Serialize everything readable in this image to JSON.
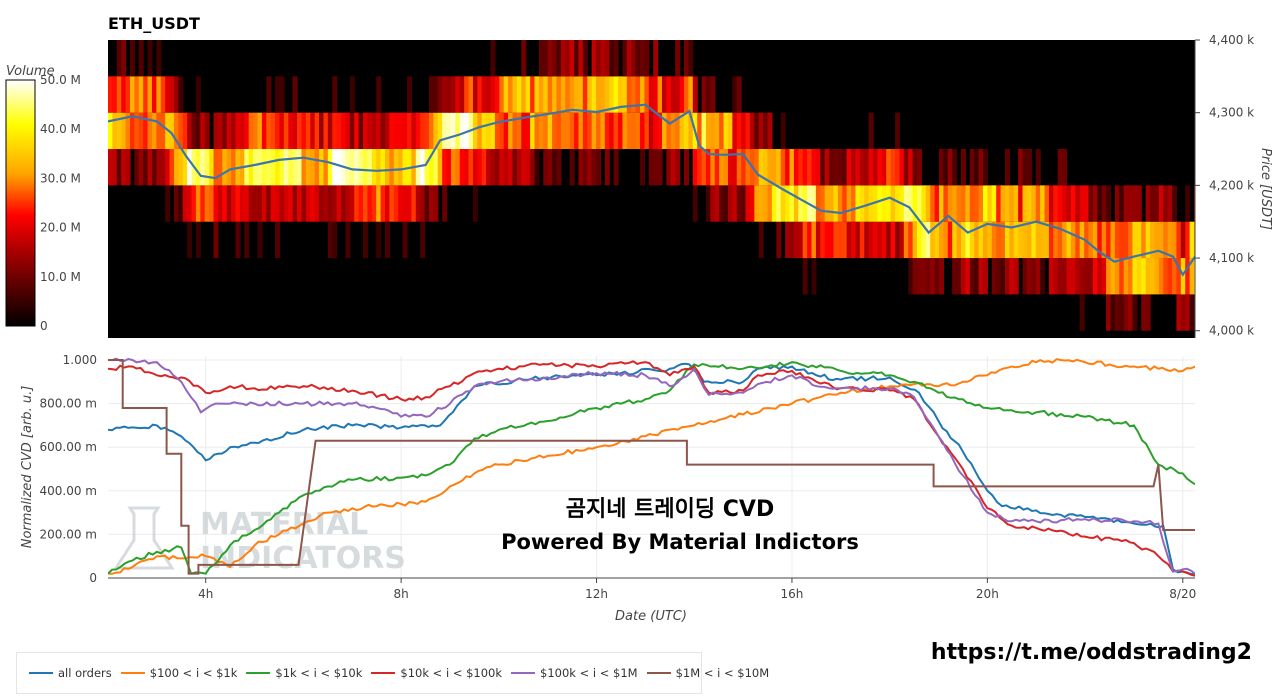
{
  "title": "ETH_USDT",
  "link_text": "https://t.me/oddstrading2",
  "overlay_line1": "곰지네 트레이딩 CVD",
  "overlay_line2": "Powered By Material Indictors",
  "watermark_line1": "MATERIAL",
  "watermark_line2": "INDICATORS",
  "chart_data": [
    {
      "type": "heatmap",
      "title": "ETH_USDT",
      "colorbar_title": "Volume",
      "colorbar_ticks": [
        "50.0 M",
        "40.0 M",
        "30.0 M",
        "20.0 M",
        "10.0 M",
        "0"
      ],
      "colorscale": [
        "#000000",
        "#8b0000",
        "#ff0000",
        "#ffa500",
        "#ffff00",
        "#ffffff"
      ],
      "zlim": [
        0,
        50
      ],
      "ylabel": "Price [USDT]",
      "ylim": [
        3990,
        4400
      ],
      "y_ticks": [
        "4,400 k",
        "4,300 k",
        "4,200 k",
        "4,100 k",
        "4,000 k"
      ],
      "y_tick_values": [
        4400,
        4300,
        4200,
        4100,
        4000
      ],
      "xlim": [
        2,
        24.25
      ],
      "price_bands": [
        4000,
        4050,
        4100,
        4150,
        4200,
        4250,
        4300,
        4350
      ],
      "price_series": {
        "color": "#3b75af",
        "x": [
          2,
          2.5,
          3,
          3.3,
          3.6,
          3.9,
          4.2,
          4.5,
          5.0,
          5.5,
          6.0,
          6.5,
          7.0,
          7.5,
          8.0,
          8.5,
          8.8,
          9.2,
          9.6,
          10.0,
          10.5,
          11.0,
          11.5,
          12.0,
          12.5,
          13.0,
          13.5,
          13.9,
          14.1,
          14.3,
          14.6,
          15.0,
          15.3,
          15.8,
          16.2,
          16.6,
          17.0,
          17.5,
          18.0,
          18.4,
          18.8,
          19.2,
          19.6,
          20.0,
          20.5,
          21.0,
          21.5,
          22.0,
          22.3,
          22.6,
          23.0,
          23.5,
          23.8,
          24.0,
          24.25
        ],
        "y": [
          4288,
          4295,
          4288,
          4272,
          4240,
          4213,
          4210,
          4222,
          4228,
          4235,
          4238,
          4232,
          4222,
          4220,
          4222,
          4228,
          4262,
          4270,
          4280,
          4287,
          4293,
          4298,
          4304,
          4301,
          4308,
          4311,
          4285,
          4302,
          4255,
          4243,
          4242,
          4243,
          4215,
          4195,
          4180,
          4165,
          4162,
          4172,
          4183,
          4170,
          4135,
          4158,
          4135,
          4147,
          4142,
          4150,
          4140,
          4125,
          4108,
          4095,
          4102,
          4110,
          4102,
          4077,
          4102
        ]
      }
    },
    {
      "type": "line",
      "xlabel": "Date (UTC)",
      "ylabel": "Normalized CVD [arb. u.]",
      "xlim": [
        2,
        24.25
      ],
      "ylim": [
        0,
        1
      ],
      "x_ticks": [
        "4h",
        "8h",
        "12h",
        "16h",
        "20h",
        "8/20"
      ],
      "x_tick_values": [
        4,
        8,
        12,
        16,
        20,
        24
      ],
      "y_ticks": [
        "1.000",
        "800.00 m",
        "600.00 m",
        "400.00 m",
        "200.00 m",
        "0"
      ],
      "y_tick_values": [
        1,
        0.8,
        0.6,
        0.4,
        0.2,
        0
      ],
      "series": [
        {
          "name": "all orders",
          "color": "#1f77b4",
          "x": [
            2,
            3,
            3.5,
            4.0,
            4.5,
            5.0,
            6.0,
            7.0,
            8.0,
            8.8,
            9.5,
            10.5,
            11.5,
            12.5,
            13.5,
            13.9,
            14.2,
            15.0,
            15.3,
            16.0,
            16.5,
            17.0,
            18.0,
            18.6,
            19.0,
            19.5,
            20.0,
            20.3,
            21.0,
            21.5,
            22.0,
            22.5,
            23.0,
            23.6,
            23.8,
            24.0,
            24.25
          ],
          "y": [
            0.68,
            0.7,
            0.65,
            0.54,
            0.6,
            0.62,
            0.68,
            0.7,
            0.69,
            0.7,
            0.88,
            0.91,
            0.93,
            0.94,
            0.96,
            0.98,
            0.9,
            0.9,
            0.96,
            0.97,
            0.93,
            0.91,
            0.92,
            0.85,
            0.72,
            0.58,
            0.4,
            0.33,
            0.31,
            0.29,
            0.28,
            0.27,
            0.25,
            0.24,
            0.04,
            0.03,
            0.02
          ]
        },
        {
          "name": "$100 < i < $1k",
          "color": "#ff7f0e",
          "x": [
            2,
            2.5,
            3.0,
            3.5,
            4.0,
            4.5,
            5.0,
            5.5,
            6.0,
            6.5,
            7.0,
            7.5,
            8.0,
            8.5,
            9.0,
            9.5,
            10.0,
            11.0,
            12.0,
            13.0,
            14.0,
            15.0,
            16.0,
            17.0,
            18.0,
            18.5,
            19.0,
            19.5,
            20.0,
            20.5,
            21.0,
            21.5,
            22.0,
            22.5,
            23.0,
            23.5,
            24.0,
            24.25
          ],
          "y": [
            0.02,
            0.05,
            0.1,
            0.09,
            0.1,
            0.05,
            0.15,
            0.2,
            0.25,
            0.3,
            0.32,
            0.33,
            0.34,
            0.35,
            0.42,
            0.48,
            0.52,
            0.56,
            0.6,
            0.65,
            0.7,
            0.75,
            0.8,
            0.85,
            0.88,
            0.89,
            0.88,
            0.9,
            0.93,
            0.97,
            0.99,
            1.0,
            0.99,
            0.98,
            0.97,
            0.96,
            0.95,
            0.97
          ]
        },
        {
          "name": "$1k < i < $10k",
          "color": "#2ca02c",
          "x": [
            2,
            2.5,
            3.0,
            3.5,
            3.7,
            4.0,
            4.5,
            5.0,
            5.5,
            6.0,
            6.5,
            7.0,
            8.0,
            8.5,
            9.0,
            9.5,
            10.0,
            11.0,
            12.0,
            13.0,
            13.5,
            14.0,
            15.0,
            15.5,
            16.0,
            17.0,
            18.0,
            18.5,
            19.0,
            19.5,
            20.0,
            21.0,
            22.0,
            23.0,
            23.5,
            24.0,
            24.25
          ],
          "y": [
            0.02,
            0.08,
            0.12,
            0.14,
            0.02,
            0.02,
            0.15,
            0.22,
            0.3,
            0.38,
            0.42,
            0.45,
            0.46,
            0.47,
            0.52,
            0.64,
            0.68,
            0.72,
            0.78,
            0.82,
            0.86,
            0.98,
            0.96,
            0.97,
            0.99,
            0.95,
            0.93,
            0.9,
            0.85,
            0.82,
            0.78,
            0.76,
            0.74,
            0.7,
            0.52,
            0.48,
            0.43
          ]
        },
        {
          "name": "$10k < i < $100k",
          "color": "#d62728",
          "x": [
            2,
            2.5,
            3.0,
            3.5,
            4.0,
            4.5,
            5.0,
            6.0,
            7.0,
            8.0,
            8.5,
            9.0,
            9.5,
            10.0,
            11.0,
            12.0,
            13.0,
            13.5,
            14.0,
            14.3,
            15.0,
            15.3,
            16.0,
            16.5,
            17.0,
            18.0,
            18.5,
            19.0,
            19.5,
            20.0,
            20.5,
            21.0,
            22.0,
            23.0,
            23.5,
            23.8,
            24.0,
            24.25
          ],
          "y": [
            0.96,
            0.97,
            0.93,
            0.92,
            0.85,
            0.88,
            0.87,
            0.88,
            0.86,
            0.82,
            0.83,
            0.88,
            0.94,
            0.96,
            0.98,
            0.97,
            0.99,
            0.93,
            0.97,
            0.85,
            0.86,
            0.93,
            0.95,
            0.9,
            0.87,
            0.86,
            0.82,
            0.65,
            0.5,
            0.32,
            0.24,
            0.23,
            0.19,
            0.16,
            0.1,
            0.03,
            0.03,
            0.01
          ]
        },
        {
          "name": "$100k < i < $1M",
          "color": "#9467bd",
          "x": [
            2,
            2.5,
            3.0,
            3.5,
            3.9,
            4.2,
            4.5,
            5.0,
            6.0,
            7.0,
            7.5,
            8.0,
            8.5,
            9.0,
            9.5,
            10.0,
            11.0,
            12.0,
            13.0,
            13.5,
            14.0,
            14.3,
            15.0,
            15.3,
            16.0,
            16.5,
            17.0,
            18.0,
            18.5,
            19.0,
            19.5,
            20.0,
            20.5,
            21.0,
            22.0,
            23.0,
            23.5,
            23.8,
            24.0,
            24.25
          ],
          "y": [
            1.0,
            1.0,
            0.99,
            0.9,
            0.76,
            0.8,
            0.8,
            0.8,
            0.8,
            0.8,
            0.78,
            0.74,
            0.74,
            0.8,
            0.88,
            0.9,
            0.92,
            0.94,
            0.93,
            0.88,
            0.96,
            0.84,
            0.85,
            0.89,
            0.93,
            0.88,
            0.87,
            0.87,
            0.83,
            0.65,
            0.47,
            0.3,
            0.26,
            0.26,
            0.27,
            0.26,
            0.25,
            0.03,
            0.04,
            0.02
          ]
        },
        {
          "name": "$1M < i < $10M",
          "color": "#8c564b",
          "x": [
            2.0,
            2.3,
            2.3,
            3.2,
            3.2,
            3.5,
            3.5,
            3.65,
            3.65,
            3.85,
            3.85,
            5.9,
            6.25,
            13.85,
            13.85,
            18.9,
            18.9,
            23.4,
            23.5,
            23.6,
            23.6,
            24.25
          ],
          "y": [
            1.0,
            1.0,
            0.78,
            0.78,
            0.57,
            0.57,
            0.24,
            0.24,
            0.02,
            0.02,
            0.06,
            0.06,
            0.63,
            0.63,
            0.52,
            0.52,
            0.42,
            0.42,
            0.52,
            0.22,
            0.22,
            0.22
          ]
        }
      ]
    }
  ]
}
